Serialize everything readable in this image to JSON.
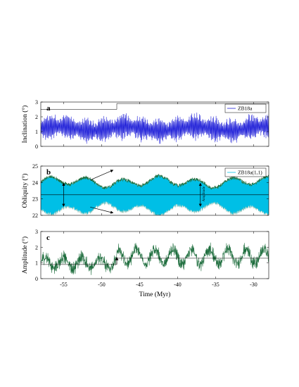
{
  "chart_data": [
    {
      "type": "line",
      "panel_label": "a",
      "ylabel": "Inclination (°)",
      "xlim": [
        -58,
        -28
      ],
      "ylim": [
        0,
        3
      ],
      "yticks": [
        "0",
        "1",
        "2",
        "3"
      ],
      "legend": {
        "entry": "ZB18a",
        "placement": "top-right"
      },
      "series": [
        {
          "name": "ZB18a",
          "color": "#1f1fd8",
          "mean": 1.2,
          "amplitude": 1.0
        }
      ],
      "reference_lines": [
        {
          "y": 2.5,
          "x_from": -58,
          "x_to": -48
        },
        {
          "y": 2.9,
          "x_from": -48,
          "x_to": -28
        }
      ]
    },
    {
      "type": "line",
      "panel_label": "b",
      "ylabel": "Obliquity (°)",
      "xlim": [
        -58,
        -28
      ],
      "ylim": [
        22,
        25
      ],
      "yticks": [
        "22",
        "23",
        "24",
        "25"
      ],
      "legend": {
        "entry": "ZB18a(1,1)",
        "placement": "top-right"
      },
      "series": [
        {
          "name": "ZB18a(1,1)",
          "color": "#00bfe6",
          "band_low": 22.4,
          "band_high": 24.0
        }
      ],
      "envelope_color": "#1a6b3a",
      "mean_line": 23.25,
      "annotation": "Amplitude",
      "amplitude_arrow_x": [
        -55,
        -37
      ]
    },
    {
      "type": "line",
      "panel_label": "c",
      "ylabel": "Amplitude (°)",
      "xlabel": "Time (Myr)",
      "xlim": [
        -58,
        -28
      ],
      "ylim": [
        0,
        3
      ],
      "yticks": [
        "0",
        "1",
        "2",
        "3"
      ],
      "xticks": [
        "-55",
        "-50",
        "-45",
        "-40",
        "-35",
        "-30"
      ],
      "series": [
        {
          "name": "",
          "color": "#1a6b3a",
          "mean_before": 1.0,
          "mean_after": 1.4,
          "step_at": -48
        }
      ],
      "reference_lines": [
        {
          "y": 0.9,
          "x_from": -58,
          "x_to": -48
        },
        {
          "y": 1.3,
          "x_from": -48,
          "x_to": -28
        }
      ]
    }
  ]
}
